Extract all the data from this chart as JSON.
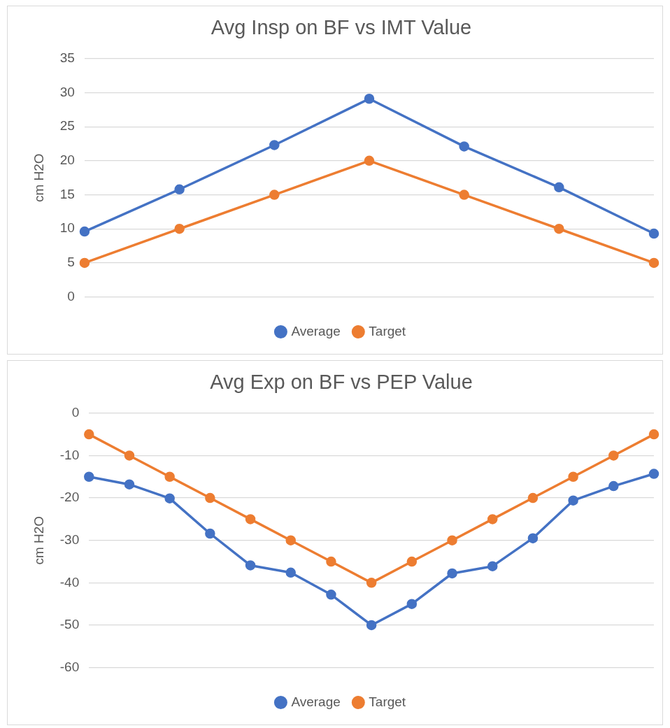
{
  "chart_data": [
    {
      "type": "line",
      "title": "Avg Insp on BF vs IMT Value",
      "ylabel": "cm H2O",
      "categories": [
        null,
        null,
        null,
        null,
        null,
        null,
        null
      ],
      "series": [
        {
          "name": "Average",
          "color": "#4472c4",
          "values": [
            9.6,
            15.8,
            22.3,
            29.1,
            22.1,
            16.1,
            9.3
          ]
        },
        {
          "name": "Target",
          "color": "#ed7d31",
          "values": [
            5,
            10,
            15,
            20,
            15,
            10,
            5
          ]
        }
      ],
      "ylim": [
        0,
        35
      ],
      "yticks": [
        0,
        5,
        10,
        15,
        20,
        25,
        30,
        35
      ],
      "grid": "y",
      "legend": "bottom",
      "marker": "circle",
      "line_style": "solid"
    },
    {
      "type": "line",
      "title": "Avg Exp on BF vs PEP Value",
      "ylabel": "cm H2O",
      "categories": [
        null,
        null,
        null,
        null,
        null,
        null,
        null,
        null,
        null,
        null,
        null,
        null,
        null,
        null,
        null
      ],
      "series": [
        {
          "name": "Average",
          "color": "#4472c4",
          "values": [
            -15,
            -16.8,
            -20.1,
            -28.4,
            -35.9,
            -37.6,
            -42.8,
            -50,
            -45,
            -37.8,
            -36.1,
            -29.5,
            -20.6,
            -17.2,
            -14.3
          ]
        },
        {
          "name": "Target",
          "color": "#ed7d31",
          "values": [
            -5,
            -10,
            -15,
            -20,
            -25,
            -30,
            -35,
            -40,
            -35,
            -30,
            -25,
            -20,
            -15,
            -10,
            -5
          ]
        }
      ],
      "ylim": [
        -60,
        0
      ],
      "yticks": [
        -60,
        -50,
        -40,
        -30,
        -20,
        -10,
        0
      ],
      "grid": "y",
      "legend": "bottom",
      "marker": "circle",
      "line_style": "solid"
    }
  ]
}
